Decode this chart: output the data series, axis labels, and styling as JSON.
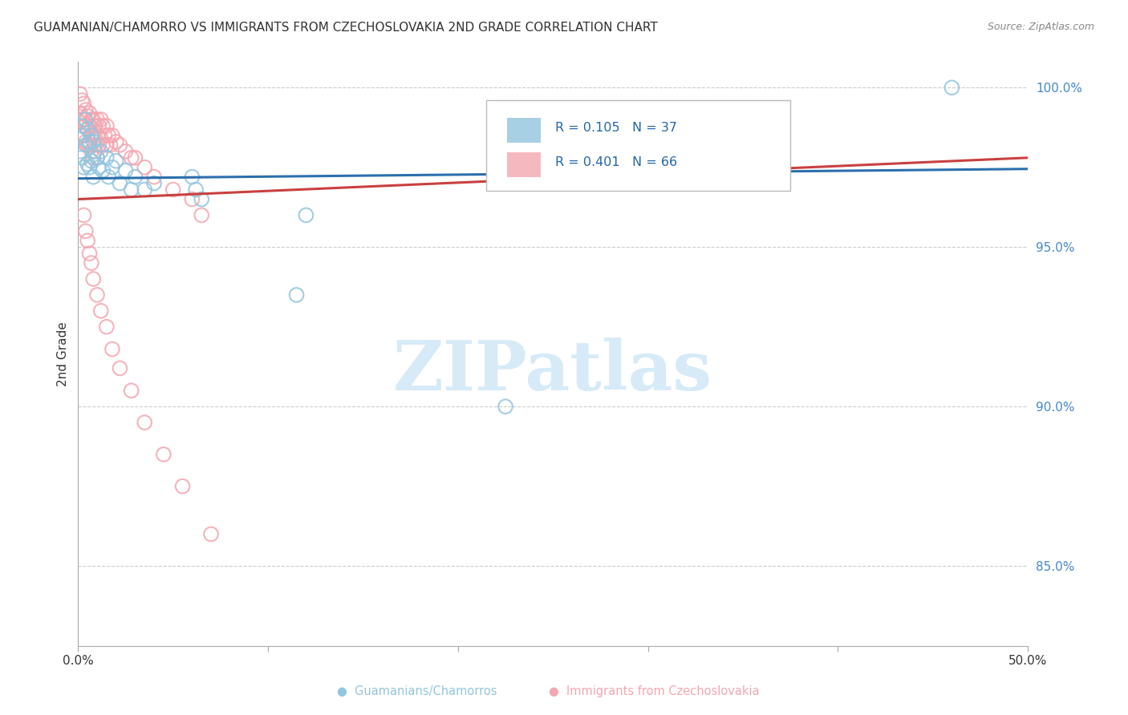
{
  "title": "GUAMANIAN/CHAMORRO VS IMMIGRANTS FROM CZECHOSLOVAKIA 2ND GRADE CORRELATION CHART",
  "source": "Source: ZipAtlas.com",
  "ylabel": "2nd Grade",
  "xlim": [
    0.0,
    0.5
  ],
  "ylim": [
    0.825,
    1.008
  ],
  "xticks": [
    0.0,
    0.1,
    0.2,
    0.3,
    0.4,
    0.5
  ],
  "xticklabels": [
    "0.0%",
    "",
    "",
    "",
    "",
    "50.0%"
  ],
  "yticks": [
    0.85,
    0.9,
    0.95,
    1.0
  ],
  "yticklabels": [
    "85.0%",
    "90.0%",
    "95.0%",
    "100.0%"
  ],
  "legend_labels": [
    "Guamanians/Chamorros",
    "Immigrants from Czechoslovakia"
  ],
  "legend_r_n": [
    {
      "R": "0.105",
      "N": "37"
    },
    {
      "R": "0.401",
      "N": "66"
    }
  ],
  "blue_color": "#92c5de",
  "pink_color": "#f4a6b0",
  "blue_line_color": "#2c6fad",
  "pink_line_color": "#c94040",
  "watermark_color": "#d6eaf8",
  "grid_color": "#cccccc",
  "blue_scatter_x": [
    0.001,
    0.002,
    0.002,
    0.003,
    0.003,
    0.004,
    0.004,
    0.005,
    0.005,
    0.006,
    0.006,
    0.007,
    0.007,
    0.008,
    0.008,
    0.009,
    0.01,
    0.011,
    0.012,
    0.013,
    0.015,
    0.016,
    0.018,
    0.02,
    0.022,
    0.025,
    0.028,
    0.03,
    0.035,
    0.04,
    0.06,
    0.062,
    0.065,
    0.115,
    0.12,
    0.225,
    0.46
  ],
  "blue_scatter_y": [
    0.98,
    0.988,
    0.978,
    0.985,
    0.975,
    0.99,
    0.982,
    0.987,
    0.976,
    0.983,
    0.975,
    0.985,
    0.977,
    0.983,
    0.972,
    0.98,
    0.978,
    0.975,
    0.98,
    0.974,
    0.978,
    0.972,
    0.975,
    0.977,
    0.97,
    0.974,
    0.968,
    0.972,
    0.968,
    0.97,
    0.972,
    0.968,
    0.965,
    0.935,
    0.96,
    0.9,
    1.0
  ],
  "pink_scatter_x": [
    0.001,
    0.001,
    0.002,
    0.002,
    0.002,
    0.003,
    0.003,
    0.003,
    0.004,
    0.004,
    0.004,
    0.005,
    0.005,
    0.005,
    0.006,
    0.006,
    0.006,
    0.007,
    0.007,
    0.007,
    0.008,
    0.008,
    0.008,
    0.009,
    0.009,
    0.01,
    0.01,
    0.01,
    0.011,
    0.011,
    0.012,
    0.012,
    0.013,
    0.013,
    0.014,
    0.015,
    0.015,
    0.016,
    0.017,
    0.018,
    0.02,
    0.022,
    0.025,
    0.028,
    0.03,
    0.035,
    0.04,
    0.05,
    0.06,
    0.065,
    0.003,
    0.004,
    0.005,
    0.006,
    0.007,
    0.008,
    0.01,
    0.012,
    0.015,
    0.018,
    0.022,
    0.028,
    0.035,
    0.045,
    0.055,
    0.07
  ],
  "pink_scatter_y": [
    0.998,
    0.992,
    0.996,
    0.99,
    0.985,
    0.995,
    0.99,
    0.985,
    0.993,
    0.988,
    0.983,
    0.991,
    0.987,
    0.982,
    0.992,
    0.988,
    0.982,
    0.99,
    0.985,
    0.98,
    0.99,
    0.985,
    0.978,
    0.988,
    0.982,
    0.99,
    0.985,
    0.978,
    0.988,
    0.982,
    0.99,
    0.984,
    0.988,
    0.982,
    0.985,
    0.988,
    0.982,
    0.985,
    0.982,
    0.985,
    0.983,
    0.982,
    0.98,
    0.978,
    0.978,
    0.975,
    0.972,
    0.968,
    0.965,
    0.96,
    0.96,
    0.955,
    0.952,
    0.948,
    0.945,
    0.94,
    0.935,
    0.93,
    0.925,
    0.918,
    0.912,
    0.905,
    0.895,
    0.885,
    0.875,
    0.86
  ],
  "blue_trendline": [
    0.9715,
    0.9745
  ],
  "pink_trendline": [
    0.965,
    0.978
  ]
}
